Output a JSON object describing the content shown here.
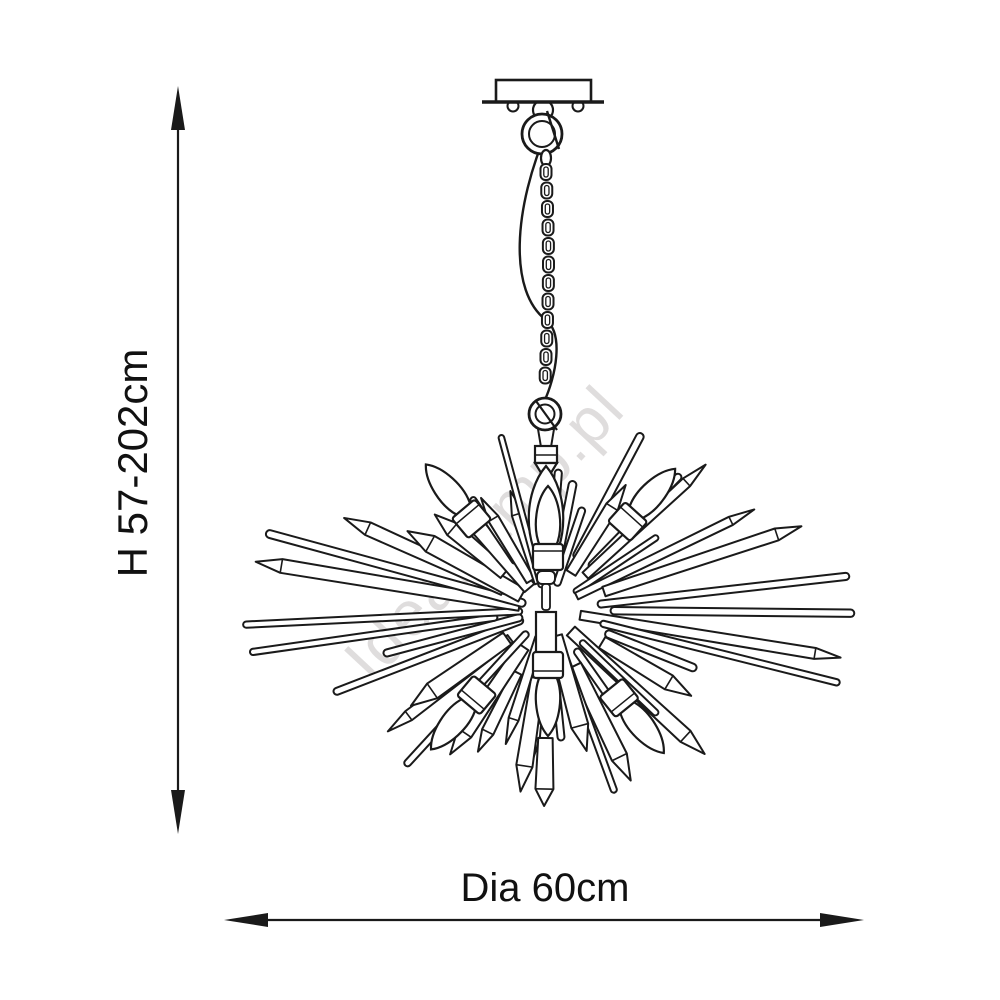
{
  "page": {
    "background": "#ffffff",
    "line_color": "#1a1a1a",
    "description": "Technical dimension line drawing of a sputnik crystal chandelier pendant lamp"
  },
  "watermark": {
    "text": "IdeaLamp.pl"
  },
  "dimensions": {
    "height_label": "H 57-202cm",
    "diameter_label": "Dia 60cm"
  },
  "figure": {
    "type": "line-drawing",
    "subject": "sputnik crystal chandelier with candle bulbs",
    "visible_parts": [
      "ceiling-canopy",
      "mounting-screws",
      "top-ring",
      "hanging-chain",
      "power-cord",
      "bottom-ring",
      "center-stem",
      "marquise-crystal",
      "candle-bulbs",
      "crystal-rays",
      "rod-rays"
    ],
    "candle_bulb_count": 6
  }
}
